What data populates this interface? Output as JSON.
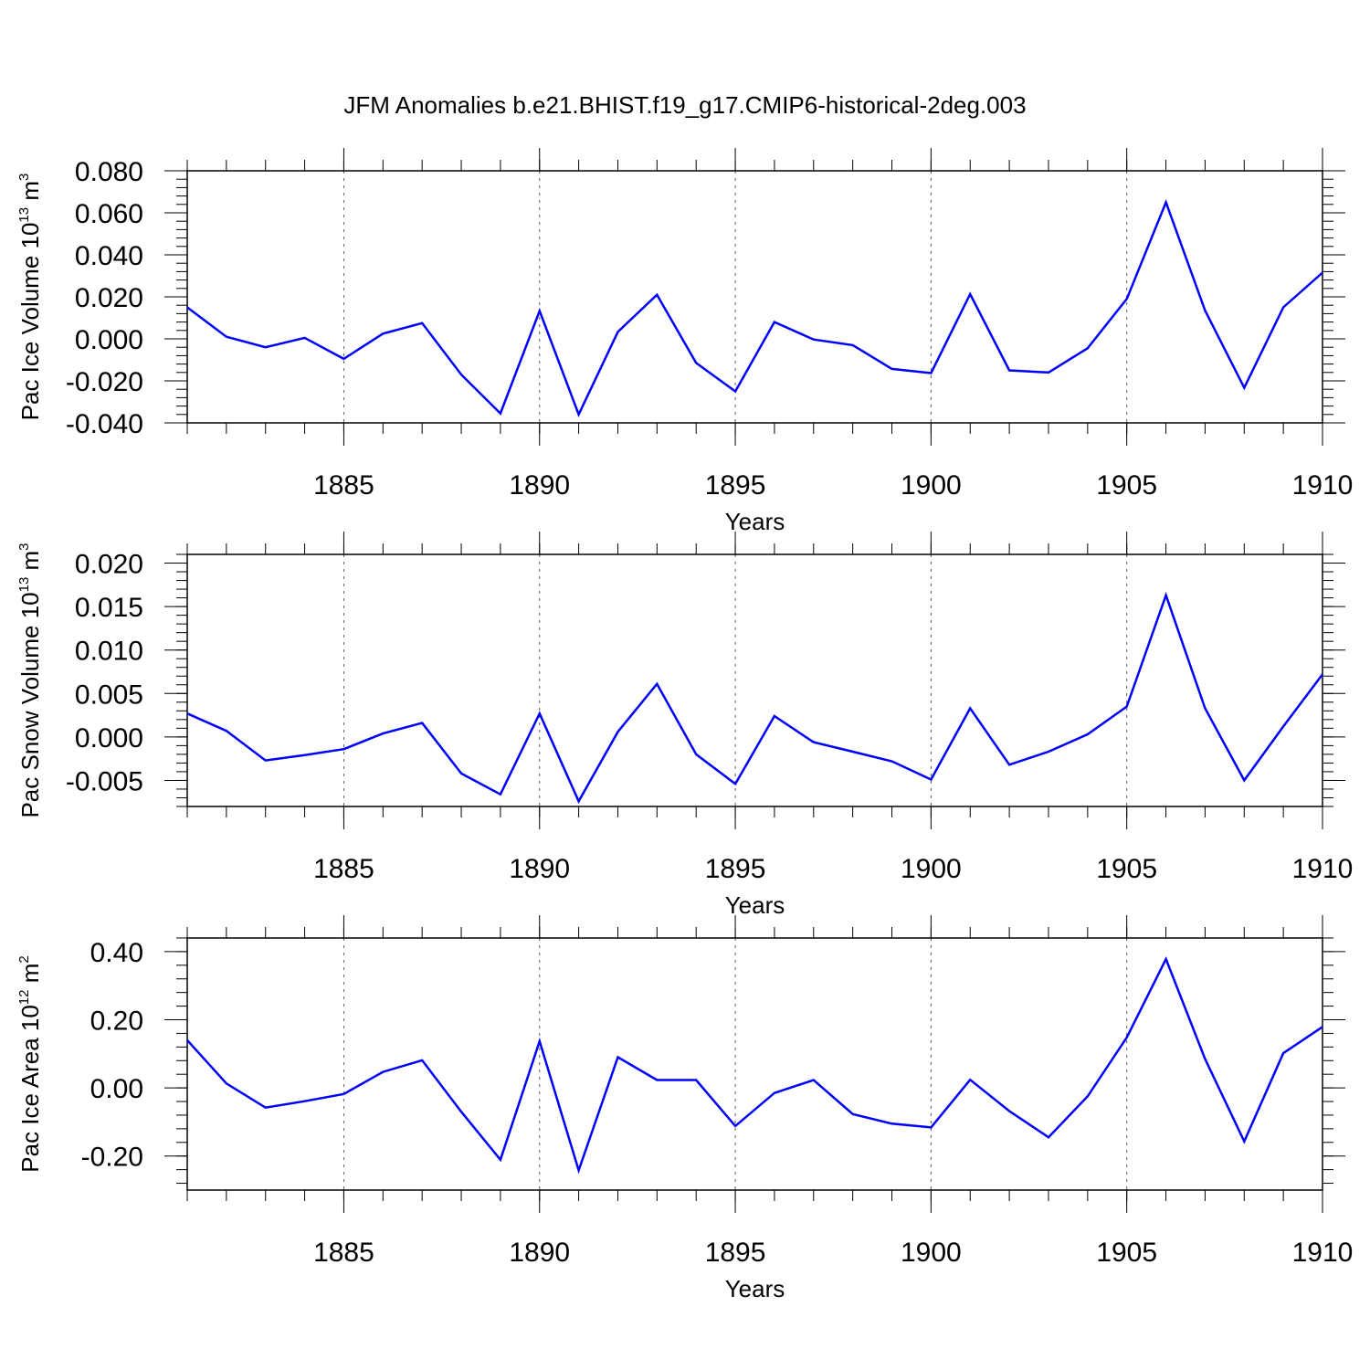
{
  "page_title": "JFM Anomalies b.e21.BHIST.f19_g17.CMIP6-historical-2deg.003",
  "colors": {
    "series": "#0000ff",
    "axis": "#000000",
    "grid": "#555555",
    "background": "#ffffff"
  },
  "chart_data": [
    {
      "type": "line",
      "title": "JFM Anomalies b.e21.BHIST.f19_g17.CMIP6-historical-2deg.003",
      "xlabel": "Years",
      "ylabel": {
        "text": "Pac Ice Volume 10",
        "exp": "13",
        "unit": " m",
        "unit_exp": "3"
      },
      "xlim": [
        1881,
        1910
      ],
      "ylim": [
        -0.04,
        0.08
      ],
      "x_ticks": [
        1885,
        1890,
        1895,
        1900,
        1905,
        1910
      ],
      "x_tick_labels": [
        "1885",
        "1890",
        "1895",
        "1900",
        "1905",
        "1910"
      ],
      "y_ticks": [
        -0.04,
        -0.02,
        0.0,
        0.02,
        0.04,
        0.06,
        0.08
      ],
      "y_tick_labels": [
        "-0.040",
        "-0.020",
        "0.000",
        "0.020",
        "0.040",
        "0.060",
        "0.080"
      ],
      "grid": "vertical dashed at major x ticks",
      "x": [
        1881,
        1882,
        1883,
        1884,
        1885,
        1886,
        1887,
        1888,
        1889,
        1890,
        1891,
        1892,
        1893,
        1894,
        1895,
        1896,
        1897,
        1898,
        1899,
        1900,
        1901,
        1902,
        1903,
        1904,
        1905,
        1906,
        1907,
        1908,
        1909,
        1910
      ],
      "series": [
        {
          "values": [
            0.015,
            0.001,
            -0.004,
            0.0005,
            -0.0095,
            0.0025,
            0.0075,
            -0.017,
            -0.0355,
            0.0133,
            -0.036,
            0.0033,
            0.021,
            -0.0115,
            -0.025,
            0.008,
            -0.0003,
            -0.003,
            -0.0143,
            -0.0163,
            0.0213,
            -0.015,
            -0.016,
            -0.0045,
            0.019,
            0.065,
            0.0135,
            -0.0233,
            0.015,
            0.0315
          ]
        }
      ]
    },
    {
      "type": "line",
      "xlabel": "Years",
      "ylabel": {
        "text": "Pac Snow Volume 10",
        "exp": "13",
        "unit": " m",
        "unit_exp": "3"
      },
      "xlim": [
        1881,
        1910
      ],
      "ylim": [
        -0.008,
        0.021
      ],
      "x_ticks": [
        1885,
        1890,
        1895,
        1900,
        1905,
        1910
      ],
      "x_tick_labels": [
        "1885",
        "1890",
        "1895",
        "1900",
        "1905",
        "1910"
      ],
      "y_ticks": [
        -0.005,
        0.0,
        0.005,
        0.01,
        0.015,
        0.02
      ],
      "y_tick_labels": [
        "-0.005",
        "0.000",
        "0.005",
        "0.010",
        "0.015",
        "0.020"
      ],
      "grid": "vertical dashed at major x ticks",
      "x": [
        1881,
        1882,
        1883,
        1884,
        1885,
        1886,
        1887,
        1888,
        1889,
        1890,
        1891,
        1892,
        1893,
        1894,
        1895,
        1896,
        1897,
        1898,
        1899,
        1900,
        1901,
        1902,
        1903,
        1904,
        1905,
        1906,
        1907,
        1908,
        1909,
        1910
      ],
      "series": [
        {
          "values": [
            0.0027,
            0.0007,
            -0.0027,
            -0.0021,
            -0.0014,
            0.0004,
            0.0016,
            -0.0042,
            -0.0066,
            0.0027,
            -0.0074,
            0.0006,
            0.0061,
            -0.002,
            -0.0054,
            0.0024,
            -0.0006,
            -0.0017,
            -0.0028,
            -0.0049,
            0.0033,
            -0.0032,
            -0.0017,
            0.0003,
            0.0035,
            0.0163,
            0.0033,
            -0.005,
            0.0012,
            0.0072
          ]
        }
      ]
    },
    {
      "type": "line",
      "xlabel": "Years",
      "ylabel": {
        "text": "Pac Ice Area 10",
        "exp": "12",
        "unit": " m",
        "unit_exp": "2"
      },
      "xlim": [
        1881,
        1910
      ],
      "ylim": [
        -0.3,
        0.44
      ],
      "x_ticks": [
        1885,
        1890,
        1895,
        1900,
        1905,
        1910
      ],
      "x_tick_labels": [
        "1885",
        "1890",
        "1895",
        "1900",
        "1905",
        "1910"
      ],
      "y_ticks": [
        -0.2,
        0.0,
        0.2,
        0.4
      ],
      "y_tick_labels": [
        "-0.20",
        "0.00",
        "0.20",
        "0.40"
      ],
      "grid": "vertical dashed at major x ticks",
      "x": [
        1881,
        1882,
        1883,
        1884,
        1885,
        1886,
        1887,
        1888,
        1889,
        1890,
        1891,
        1892,
        1893,
        1894,
        1895,
        1896,
        1897,
        1898,
        1899,
        1900,
        1901,
        1902,
        1903,
        1904,
        1905,
        1906,
        1907,
        1908,
        1909,
        1910
      ],
      "series": [
        {
          "values": [
            0.14,
            0.013,
            -0.058,
            -0.039,
            -0.018,
            0.047,
            0.081,
            -0.07,
            -0.211,
            0.137,
            -0.242,
            0.09,
            0.023,
            0.023,
            -0.112,
            -0.015,
            0.023,
            -0.077,
            -0.105,
            -0.116,
            0.024,
            -0.068,
            -0.145,
            -0.025,
            0.148,
            0.378,
            0.085,
            -0.157,
            0.102,
            0.179
          ]
        }
      ]
    }
  ]
}
